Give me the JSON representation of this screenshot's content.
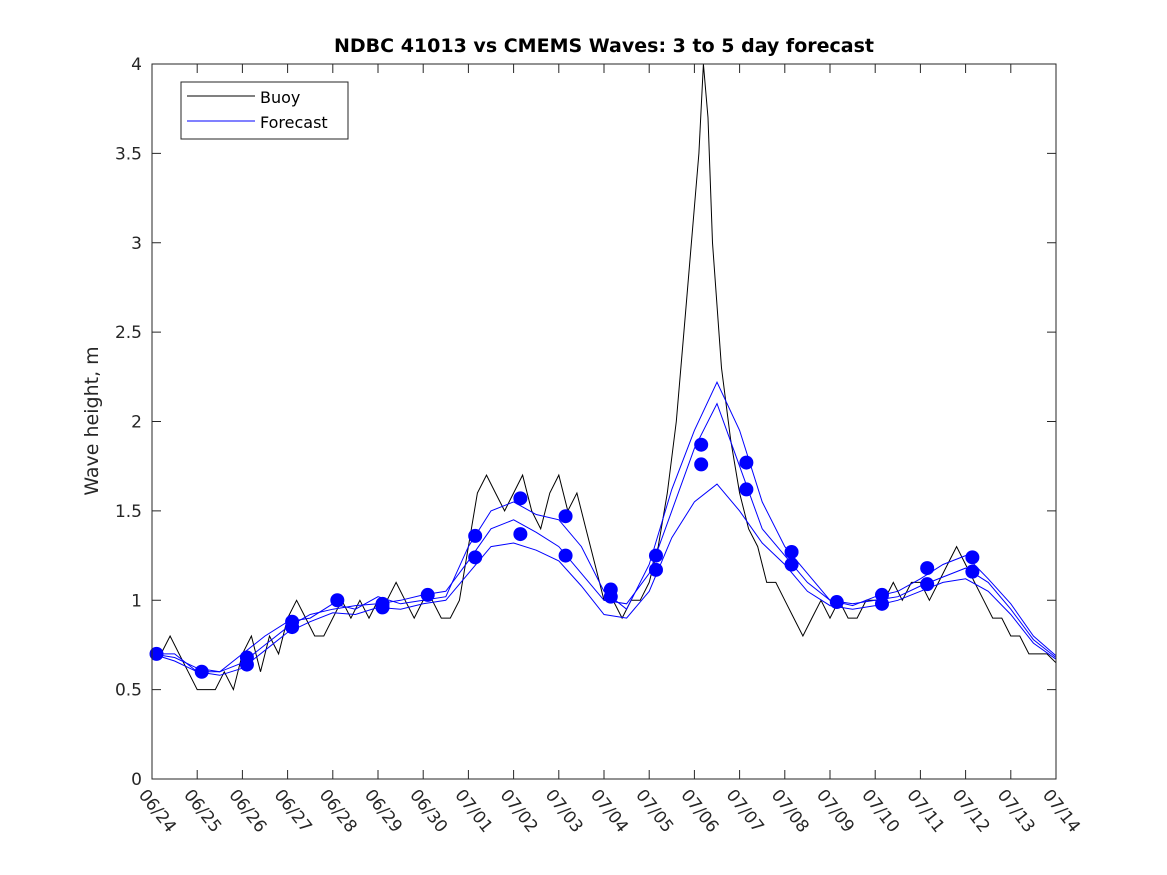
{
  "chart_data": {
    "type": "line",
    "title": "NDBC 41013 vs CMEMS Waves: 3 to 5 day forecast",
    "xlabel": "",
    "ylabel": "Wave height, m",
    "xlim": [
      "06/24",
      "07/14"
    ],
    "ylim": [
      0,
      4
    ],
    "yticks": [
      0,
      0.5,
      1,
      1.5,
      2,
      2.5,
      3,
      3.5,
      4
    ],
    "yticklabels": [
      "0",
      "0.5",
      "1",
      "1.5",
      "2",
      "2.5",
      "3",
      "3.5",
      "4"
    ],
    "categories": [
      "06/24",
      "06/25",
      "06/26",
      "06/27",
      "06/28",
      "06/29",
      "06/30",
      "07/01",
      "07/02",
      "07/03",
      "07/04",
      "07/05",
      "07/06",
      "07/07",
      "07/08",
      "07/09",
      "07/10",
      "07/11",
      "07/12",
      "07/13",
      "07/14"
    ],
    "grid": false,
    "legend": {
      "position": "top-left",
      "entries": [
        "Buoy",
        "Forecast"
      ]
    },
    "colors": {
      "buoy": "#000000",
      "forecast": "#0000ff",
      "markers": "#0000ff",
      "axes": "#262626"
    },
    "series": [
      {
        "name": "Buoy",
        "x": [
          0,
          0.2,
          0.4,
          0.6,
          0.8,
          1.0,
          1.2,
          1.4,
          1.6,
          1.8,
          2.0,
          2.2,
          2.4,
          2.6,
          2.8,
          3.0,
          3.2,
          3.4,
          3.6,
          3.8,
          4.0,
          4.2,
          4.4,
          4.6,
          4.8,
          5.0,
          5.2,
          5.4,
          5.6,
          5.8,
          6.0,
          6.2,
          6.4,
          6.6,
          6.8,
          7.0,
          7.2,
          7.4,
          7.6,
          7.8,
          8.0,
          8.2,
          8.4,
          8.6,
          8.8,
          9.0,
          9.2,
          9.4,
          9.6,
          9.8,
          10.0,
          10.2,
          10.4,
          10.6,
          10.8,
          11.0,
          11.2,
          11.4,
          11.6,
          11.8,
          12.0,
          12.1,
          12.2,
          12.3,
          12.4,
          12.6,
          12.8,
          13.0,
          13.2,
          13.4,
          13.6,
          13.8,
          14.0,
          14.2,
          14.4,
          14.6,
          14.8,
          15.0,
          15.2,
          15.4,
          15.6,
          15.8,
          16.0,
          16.2,
          16.4,
          16.6,
          16.8,
          17.0,
          17.2,
          17.4,
          17.6,
          17.8,
          18.0,
          18.2,
          18.4,
          18.6,
          18.8,
          19.0,
          19.2,
          19.4,
          19.6,
          19.8,
          20.0
        ],
        "values": [
          0.7,
          0.7,
          0.8,
          0.7,
          0.6,
          0.5,
          0.5,
          0.5,
          0.6,
          0.5,
          0.7,
          0.8,
          0.6,
          0.8,
          0.7,
          0.9,
          1.0,
          0.9,
          0.8,
          0.8,
          0.9,
          1.0,
          0.9,
          1.0,
          0.9,
          1.0,
          1.0,
          1.1,
          1.0,
          0.9,
          1.0,
          1.0,
          0.9,
          0.9,
          1.0,
          1.3,
          1.6,
          1.7,
          1.6,
          1.5,
          1.6,
          1.7,
          1.5,
          1.4,
          1.6,
          1.7,
          1.5,
          1.6,
          1.4,
          1.2,
          1.0,
          1.0,
          0.9,
          1.0,
          1.0,
          1.1,
          1.3,
          1.6,
          2.0,
          2.6,
          3.2,
          3.5,
          4.0,
          3.7,
          3.0,
          2.3,
          1.9,
          1.6,
          1.4,
          1.3,
          1.1,
          1.1,
          1.0,
          0.9,
          0.8,
          0.9,
          1.0,
          0.9,
          1.0,
          0.9,
          0.9,
          1.0,
          1.0,
          1.0,
          1.1,
          1.0,
          1.1,
          1.1,
          1.0,
          1.1,
          1.2,
          1.3,
          1.2,
          1.1,
          1.0,
          0.9,
          0.9,
          0.8,
          0.8,
          0.7,
          0.7,
          0.7,
          0.65
        ]
      },
      {
        "name": "Forecast",
        "x": [
          0,
          0.5,
          1,
          1.5,
          2,
          2.5,
          3,
          3.5,
          4,
          4.5,
          5,
          5.5,
          6,
          6.5,
          7,
          7.5,
          8,
          8.5,
          9,
          9.5,
          10,
          10.5,
          11,
          11.5,
          12,
          12.5,
          13,
          13.5,
          14,
          14.5,
          15,
          15.5,
          16,
          16.5,
          17,
          17.5,
          18,
          18.5,
          19,
          19.5,
          20
        ],
        "values": [
          0.7,
          0.7,
          0.6,
          0.6,
          0.65,
          0.75,
          0.85,
          0.92,
          0.95,
          0.97,
          0.98,
          1.0,
          1.03,
          1.05,
          1.22,
          1.4,
          1.45,
          1.38,
          1.3,
          1.15,
          1.0,
          0.98,
          1.15,
          1.5,
          1.85,
          2.1,
          1.75,
          1.4,
          1.25,
          1.1,
          1.0,
          0.98,
          1.0,
          1.02,
          1.08,
          1.13,
          1.18,
          1.1,
          0.95,
          0.78,
          0.68
        ]
      },
      {
        "name": "",
        "x": [
          0,
          0.5,
          1,
          1.5,
          2,
          2.5,
          3,
          3.5,
          4,
          4.5,
          5,
          5.5,
          6,
          6.5,
          7,
          7.5,
          8,
          8.5,
          9,
          9.5,
          10,
          10.5,
          11,
          11.5,
          12,
          12.5,
          13,
          13.5,
          14,
          14.5,
          15,
          15.5,
          16,
          16.5,
          17,
          17.5,
          18,
          18.5,
          19,
          19.5,
          20
        ],
        "values": [
          0.7,
          0.68,
          0.62,
          0.6,
          0.7,
          0.8,
          0.88,
          0.9,
          0.98,
          0.95,
          1.02,
          0.98,
          1.0,
          1.02,
          1.3,
          1.5,
          1.55,
          1.48,
          1.45,
          1.3,
          1.05,
          0.95,
          1.2,
          1.62,
          1.95,
          2.22,
          1.95,
          1.55,
          1.3,
          1.15,
          1.0,
          0.97,
          1.02,
          1.05,
          1.12,
          1.2,
          1.25,
          1.12,
          0.98,
          0.8,
          0.69
        ]
      },
      {
        "name": "",
        "x": [
          0,
          0.5,
          1,
          1.5,
          2,
          2.5,
          3,
          3.5,
          4,
          4.5,
          5,
          5.5,
          6,
          6.5,
          7,
          7.5,
          8,
          8.5,
          9,
          9.5,
          10,
          10.5,
          11,
          11.5,
          12,
          12.5,
          13,
          13.5,
          14,
          14.5,
          15,
          15.5,
          16,
          16.5,
          17,
          17.5,
          18,
          18.5,
          19,
          19.5,
          20
        ],
        "values": [
          0.7,
          0.66,
          0.6,
          0.58,
          0.62,
          0.72,
          0.82,
          0.88,
          0.93,
          0.92,
          0.96,
          0.95,
          0.98,
          1.0,
          1.15,
          1.3,
          1.32,
          1.28,
          1.22,
          1.08,
          0.92,
          0.9,
          1.05,
          1.35,
          1.55,
          1.65,
          1.5,
          1.32,
          1.2,
          1.05,
          0.97,
          0.95,
          0.97,
          1.0,
          1.05,
          1.1,
          1.12,
          1.05,
          0.92,
          0.76,
          0.67
        ]
      }
    ],
    "markers": [
      {
        "x": 0.1,
        "y": 0.7
      },
      {
        "x": 1.1,
        "y": 0.6
      },
      {
        "x": 2.1,
        "y": 0.68
      },
      {
        "x": 2.1,
        "y": 0.64
      },
      {
        "x": 3.1,
        "y": 0.88
      },
      {
        "x": 3.1,
        "y": 0.85
      },
      {
        "x": 4.1,
        "y": 1.0
      },
      {
        "x": 5.1,
        "y": 0.98
      },
      {
        "x": 5.1,
        "y": 0.96
      },
      {
        "x": 6.1,
        "y": 1.03
      },
      {
        "x": 7.15,
        "y": 1.36
      },
      {
        "x": 7.15,
        "y": 1.24
      },
      {
        "x": 8.15,
        "y": 1.57
      },
      {
        "x": 8.15,
        "y": 1.37
      },
      {
        "x": 9.15,
        "y": 1.47
      },
      {
        "x": 9.15,
        "y": 1.25
      },
      {
        "x": 10.15,
        "y": 1.06
      },
      {
        "x": 10.15,
        "y": 1.02
      },
      {
        "x": 11.15,
        "y": 1.25
      },
      {
        "x": 11.15,
        "y": 1.17
      },
      {
        "x": 12.15,
        "y": 1.87
      },
      {
        "x": 12.15,
        "y": 1.76
      },
      {
        "x": 13.15,
        "y": 1.77
      },
      {
        "x": 13.15,
        "y": 1.62
      },
      {
        "x": 14.15,
        "y": 1.27
      },
      {
        "x": 14.15,
        "y": 1.2
      },
      {
        "x": 15.15,
        "y": 0.99
      },
      {
        "x": 16.15,
        "y": 1.03
      },
      {
        "x": 16.15,
        "y": 0.98
      },
      {
        "x": 17.15,
        "y": 1.18
      },
      {
        "x": 17.15,
        "y": 1.09
      },
      {
        "x": 18.15,
        "y": 1.24
      },
      {
        "x": 18.15,
        "y": 1.16
      }
    ]
  }
}
